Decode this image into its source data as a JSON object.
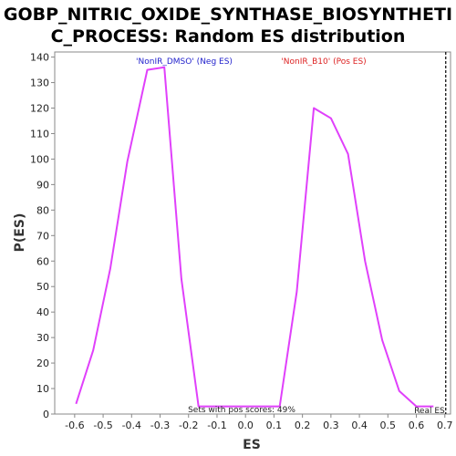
{
  "chart_data": {
    "type": "line",
    "title_line1": "GOBP_NITRIC_OXIDE_SYNTHASE_BIOSYNTHETI",
    "title_line2": "C_PROCESS: Random ES distribution",
    "xlabel": "ES",
    "ylabel": "P(ES)",
    "xlim": [
      -0.67,
      0.72
    ],
    "ylim": [
      0,
      142
    ],
    "x_ticks": [
      -0.6,
      -0.5,
      -0.4,
      -0.3,
      -0.2,
      -0.1,
      0.0,
      0.1,
      0.2,
      0.3,
      0.4,
      0.5,
      0.6,
      0.7
    ],
    "x_tick_labels": [
      "-0.6",
      "-0.5",
      "-0.4",
      "-0.3",
      "-0.2",
      "-0.1",
      "0.0",
      "0.1",
      "0.2",
      "0.3",
      "0.4",
      "0.5",
      "0.6",
      "0.7"
    ],
    "y_ticks": [
      0,
      10,
      20,
      30,
      40,
      50,
      60,
      70,
      80,
      90,
      100,
      110,
      120,
      130,
      140
    ],
    "y_tick_labels": [
      "0",
      "10",
      "20",
      "30",
      "40",
      "50",
      "60",
      "70",
      "80",
      "90",
      "100",
      "110",
      "120",
      "130",
      "140"
    ],
    "series": [
      {
        "color": "#e040fb",
        "x": [
          -0.595,
          -0.535,
          -0.475,
          -0.415,
          -0.345,
          -0.285,
          -0.225,
          -0.165,
          0.12,
          0.18,
          0.24,
          0.3,
          0.36,
          0.42,
          0.48,
          0.54,
          0.6,
          0.66
        ],
        "y": [
          4,
          25,
          57,
          99,
          135,
          136,
          53,
          3,
          3,
          48,
          120,
          116,
          102,
          60,
          29,
          9,
          3,
          3
        ]
      }
    ],
    "annotations": {
      "neg_label": "'NonIR_DMSO' (Neg ES)",
      "neg_color": "#2222cc",
      "pos_label": "'NonIR_B10' (Pos ES)",
      "pos_color": "#dd2222",
      "sets_text": "Sets with pos scores: 49%",
      "real_es_label": "Real ES",
      "real_es_value": 0.7
    },
    "grid": false,
    "legend": "none"
  }
}
